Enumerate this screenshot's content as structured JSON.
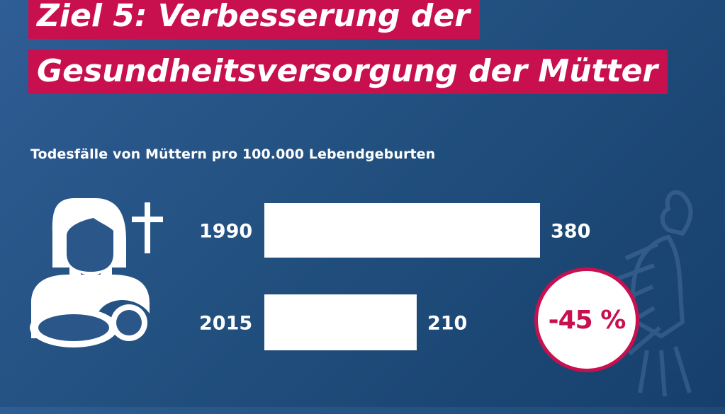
{
  "title": {
    "line1": "Ziel 5: Verbesserung der",
    "line2": "Gesundheitsversorgung der Mütter"
  },
  "colors": {
    "background": "#22507f",
    "accent": "#c8104f",
    "bar": "#ffffff",
    "text": "#ffffff"
  },
  "icons": [
    "mother-with-child-icon",
    "cross-icon",
    "federal-eagle-watermark-icon"
  ],
  "chart_data": {
    "type": "bar",
    "orientation": "horizontal",
    "title": "Todesfälle von Müttern pro 100.000 Lebendgeburten",
    "categories": [
      "1990",
      "2015"
    ],
    "values": [
      380,
      210
    ],
    "value_labels": [
      "380",
      "210"
    ],
    "annotation": "-45 %"
  }
}
